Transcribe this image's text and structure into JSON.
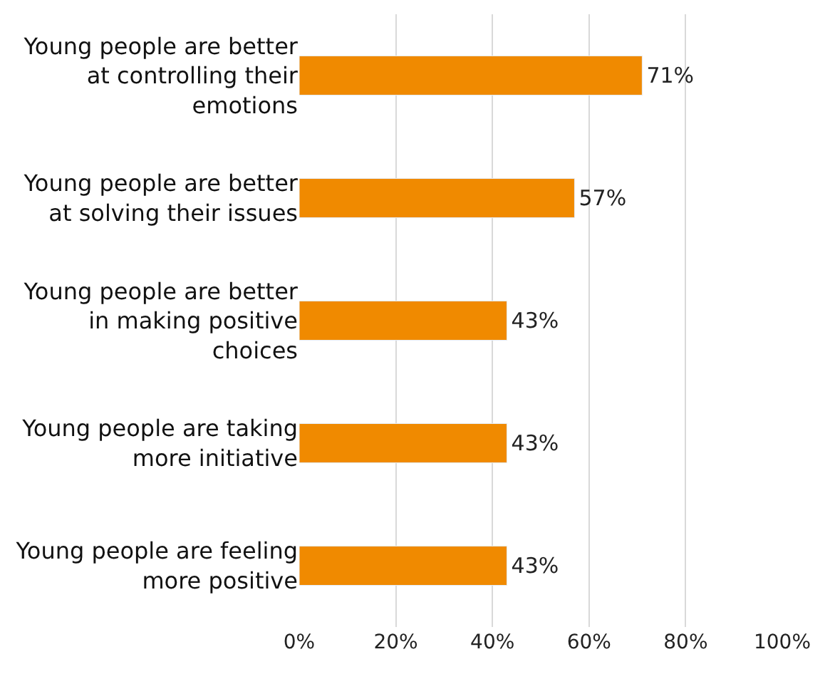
{
  "chart_data": {
    "type": "bar",
    "orientation": "horizontal",
    "categories": [
      "Young people are better at controlling their emotions",
      "Young people are better at solving their issues",
      "Young people are better in making positive choices",
      "Young people are taking more initiative",
      "Young people are feeling more positive"
    ],
    "values": [
      71,
      57,
      43,
      43,
      43
    ],
    "value_labels": [
      "71%",
      "57%",
      "43%",
      "43%",
      "43%"
    ],
    "color": "#f08a00",
    "xlim": [
      0,
      100
    ],
    "xticks": [
      {
        "value": 0,
        "label": "0%"
      },
      {
        "value": 20,
        "label": "20%"
      },
      {
        "value": 40,
        "label": "40%"
      },
      {
        "value": 60,
        "label": "60%"
      },
      {
        "value": 80,
        "label": "80%"
      },
      {
        "value": 100,
        "label": "100%"
      }
    ],
    "grid": "x",
    "legend": false
  }
}
